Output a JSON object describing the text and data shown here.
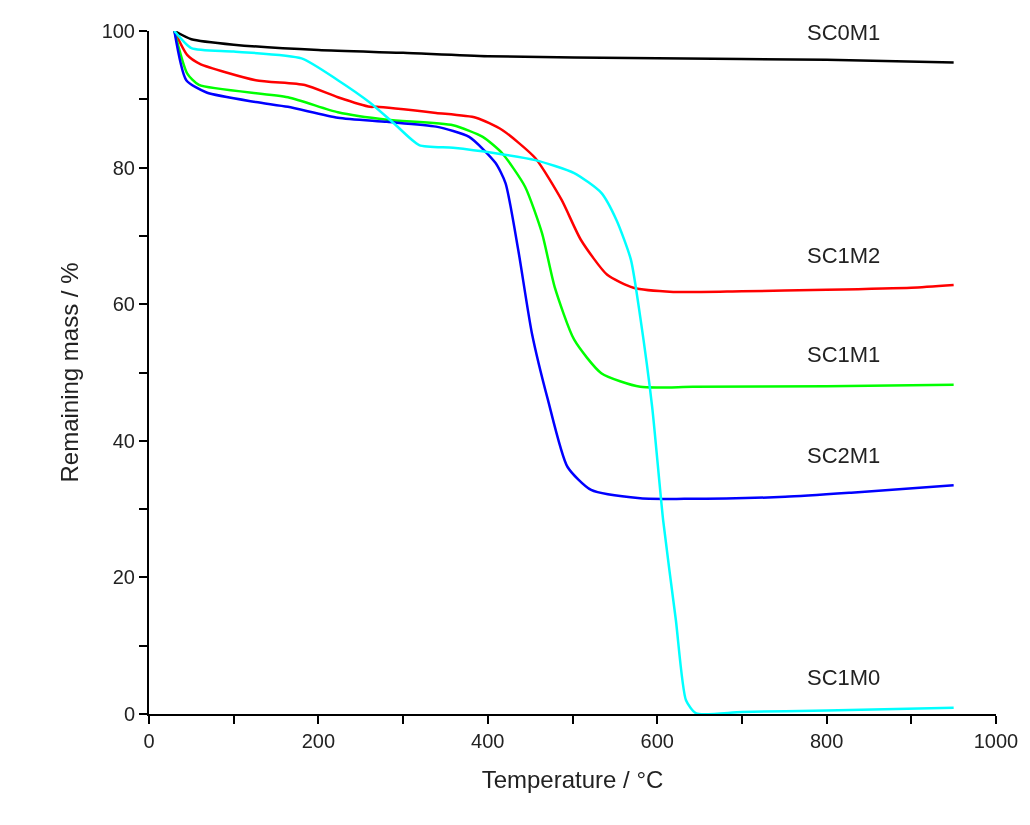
{
  "chart_data": {
    "type": "line",
    "xlabel": "Temperature / °C",
    "ylabel": "Remaining mass / %",
    "xlim": [
      0,
      1000
    ],
    "ylim": [
      0,
      100
    ],
    "xticks": [
      0,
      {
        "value": 100,
        "label": null
      },
      200,
      {
        "value": 300,
        "label": null
      },
      400,
      {
        "value": 500,
        "label": null
      },
      600,
      {
        "value": 700,
        "label": null
      },
      800,
      {
        "value": 900,
        "label": null
      },
      1000
    ],
    "yticks": [
      0,
      {
        "value": 10,
        "label": null
      },
      20,
      {
        "value": 30,
        "label": null
      },
      40,
      {
        "value": 50,
        "label": null
      },
      60,
      {
        "value": 70,
        "label": null
      },
      80,
      {
        "value": 90,
        "label": null
      },
      100
    ],
    "legend": false,
    "marker": "none",
    "line_style": "solid",
    "series": [
      {
        "name": "SC0M1",
        "color": "#000000",
        "x": [
          30,
          50,
          100,
          200,
          300,
          400,
          600,
          800,
          950
        ],
        "values": [
          100,
          98.8,
          98,
          97.2,
          96.8,
          96.3,
          96,
          95.8,
          95.4
        ]
      },
      {
        "name": "SC1M2",
        "color": "#ff0000",
        "x": [
          30,
          45,
          60,
          126,
          184,
          223,
          261,
          269,
          339,
          386,
          417,
          456,
          487,
          510,
          541,
          572,
          619,
          700,
          800,
          900,
          950
        ],
        "values": [
          100,
          96.5,
          95.2,
          92.8,
          92.1,
          90.3,
          88.9,
          88.9,
          88,
          87.3,
          85.5,
          81.4,
          75.3,
          69.4,
          64.3,
          62.4,
          61.8,
          61.9,
          62.1,
          62.4,
          62.8
        ]
      },
      {
        "name": "SC1M1",
        "color": "#00ff00",
        "x": [
          30,
          45,
          59,
          164,
          223,
          281,
          359,
          394,
          417,
          444,
          464,
          479,
          502,
          534,
          580,
          642,
          800,
          950
        ],
        "values": [
          100,
          93.8,
          92.1,
          90.3,
          88.1,
          87,
          86.2,
          84.5,
          82.1,
          77.2,
          70.4,
          62.5,
          54.8,
          49.9,
          47.9,
          47.9,
          48,
          48.2
        ]
      },
      {
        "name": "SC2M1",
        "color": "#0000ff",
        "x": [
          30,
          44,
          68,
          126,
          164,
          223,
          281,
          339,
          378,
          409,
          421,
          436,
          452,
          471,
          494,
          522,
          580,
          634,
          751,
          829,
          950
        ],
        "values": [
          100,
          92.8,
          91,
          89.6,
          88.9,
          87.3,
          86.7,
          86,
          84.5,
          80.7,
          77.7,
          67.9,
          55.8,
          46,
          36.2,
          32.8,
          31.6,
          31.5,
          31.8,
          32.4,
          33.5
        ]
      },
      {
        "name": "SC1M0",
        "color": "#00ffff",
        "x": [
          30,
          50,
          100,
          180,
          223,
          261,
          289,
          319,
          359,
          409,
          456,
          502,
          534,
          552,
          569,
          580,
          594,
          607,
          622,
          634,
          646,
          700,
          800,
          950
        ],
        "values": [
          100,
          97.5,
          97,
          96,
          92.8,
          89.5,
          86.5,
          83.3,
          82.9,
          82.1,
          81.1,
          79.2,
          76.3,
          72.3,
          66.5,
          58.1,
          45,
          28.4,
          13.8,
          2,
          0.1,
          0.3,
          0.5,
          0.9
        ]
      }
    ]
  }
}
